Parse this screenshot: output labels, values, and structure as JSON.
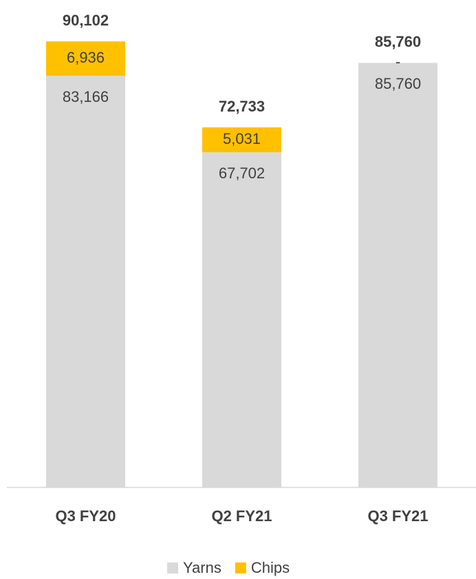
{
  "chart_data": {
    "type": "stacked_bar",
    "categories": [
      "Q3 FY20",
      "Q2 FY21",
      "Q3 FY21"
    ],
    "series": [
      {
        "name": "Yarns",
        "color": "#d9d9d9",
        "values": [
          83166,
          67702,
          85760
        ],
        "value_labels": [
          "83,166",
          "67,702",
          "85,760"
        ]
      },
      {
        "name": "Chips",
        "color": "#ffc000",
        "values": [
          6936,
          5031,
          0
        ],
        "value_labels": [
          "6,936",
          "5,031",
          "-"
        ]
      }
    ],
    "totals": {
      "values": [
        90102,
        72733,
        85760
      ],
      "value_labels": [
        "90,102",
        "72,733",
        "85,760"
      ]
    },
    "ylim": [
      0,
      100000
    ],
    "legend": "bottom"
  }
}
